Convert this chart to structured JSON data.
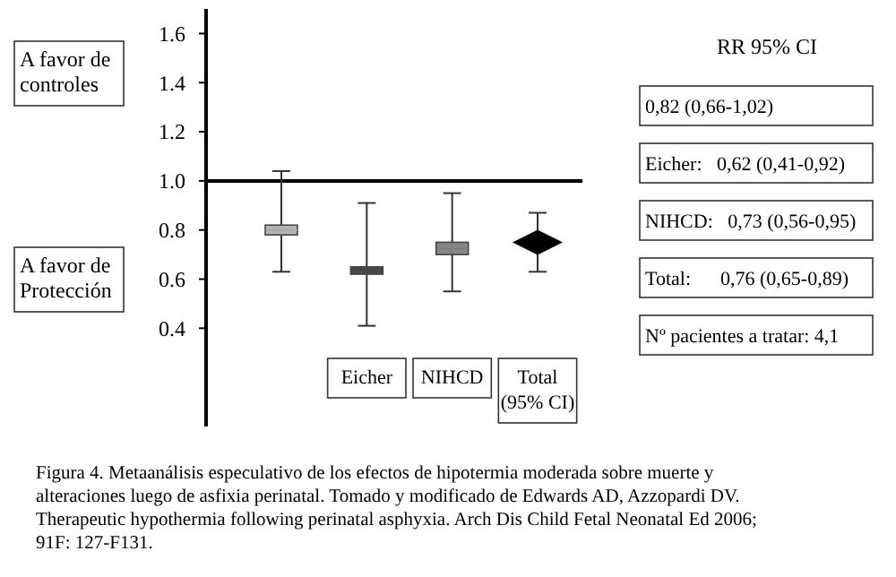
{
  "chart_data": {
    "type": "box",
    "categories": [
      null,
      "Eicher",
      "NIHCD",
      "Total (95% CI)"
    ],
    "ylim": [
      0,
      1.7
    ],
    "yticks": [
      0.4,
      0.6,
      0.8,
      {
        "value": 1,
        "label": "1.0"
      },
      1.2,
      1.4,
      1.6
    ],
    "series": [
      {
        "colors": [
          "#b4b4b4",
          "#4a4a4a",
          "#858585",
          null
        ],
        "boxes": [
          {
            "low": 0.63,
            "q1": 0.78,
            "median": 0.8,
            "q3": 0.82,
            "high": 1.04
          },
          {
            "low": 0.41,
            "q1": 0.62,
            "median": 0.635,
            "q3": 0.65,
            "high": 0.91
          },
          {
            "low": 0.55,
            "q1": 0.7,
            "median": 0.725,
            "q3": 0.75,
            "high": 0.95
          },
          null
        ]
      },
      {
        "type": "scatter",
        "marker": "diamond",
        "color": "#000000",
        "x": [
          "Total (95% CI)"
        ],
        "values": [
          0.75
        ],
        "errors": [
          [
            0.63,
            0.87
          ]
        ]
      }
    ],
    "ref_lines": [
      {
        "axis": "y",
        "value": 1,
        "color": "#000000"
      }
    ],
    "annotations": [
      "A favor de controles",
      "A favor de Protección",
      "RR 95% CI",
      "0,82 (0,66-1,02)",
      "Eicher:   0,62 (0,41-0,92)",
      "NIHCD:   0,73 (0,56-0,95)",
      "Total:      0,76 (0,65-0,89)",
      "Nº pacientes a tratar: 4,1",
      "Figura 4. Metaanálisis especulativo de los efectos de hipotermia moderada sobre muerte y alteraciones luego de asfixia perinatal. Tomado y modificado de Edwards AD, Azzopardi DV. Therapeutic hypothermia following perinatal asphyxia. Arch Dis Child Fetal Neonatal Ed 2006; 91F: 127-F131."
    ],
    "grid": false
  }
}
